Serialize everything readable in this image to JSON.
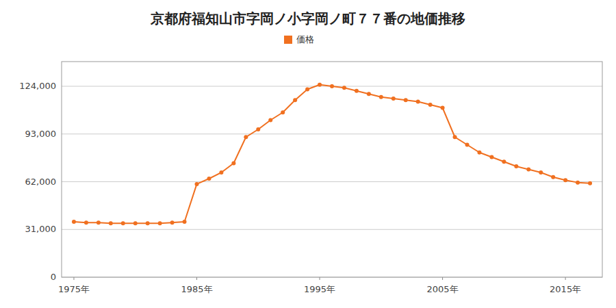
{
  "chart_data": {
    "type": "line",
    "title": "京都府福知山市字岡ノ小字岡ノ町７７番の地価推移",
    "x": [
      1975,
      1976,
      1977,
      1978,
      1979,
      1980,
      1981,
      1982,
      1983,
      1984,
      1985,
      1986,
      1987,
      1988,
      1989,
      1990,
      1991,
      1992,
      1993,
      1994,
      1995,
      1996,
      1997,
      1998,
      1999,
      2000,
      2001,
      2002,
      2003,
      2004,
      2005,
      2006,
      2007,
      2008,
      2009,
      2010,
      2011,
      2012,
      2013,
      2014,
      2015,
      2016,
      2017
    ],
    "series": [
      {
        "name": "価格",
        "color": "#f07020",
        "marker": "circle",
        "values": [
          36000,
          35500,
          35500,
          35000,
          35000,
          35000,
          35000,
          35000,
          35500,
          36000,
          60500,
          64000,
          68000,
          74000,
          91000,
          96000,
          102000,
          107000,
          115000,
          122000,
          125000,
          124000,
          123000,
          121000,
          119000,
          117000,
          116000,
          115000,
          114000,
          112000,
          110000,
          91000,
          86000,
          81000,
          78000,
          75000,
          72000,
          70000,
          68000,
          65000,
          63000,
          61500,
          61000
        ]
      }
    ],
    "xlim": [
      1974,
      2018
    ],
    "xticks": [
      {
        "value": 1975,
        "label": "1975年"
      },
      {
        "value": 1985,
        "label": "1985年"
      },
      {
        "value": 1995,
        "label": "1995年"
      },
      {
        "value": 2005,
        "label": "2005年"
      },
      {
        "value": 2015,
        "label": "2015年"
      }
    ],
    "ylim": [
      0,
      140000
    ],
    "yticks": [
      0,
      {
        "value": 31000,
        "label": "31,000"
      },
      {
        "value": 62000,
        "label": "62,000"
      },
      {
        "value": 93000,
        "label": "93,000"
      },
      {
        "value": 124000,
        "label": "124,000"
      }
    ],
    "grid": true,
    "legend": "top"
  }
}
